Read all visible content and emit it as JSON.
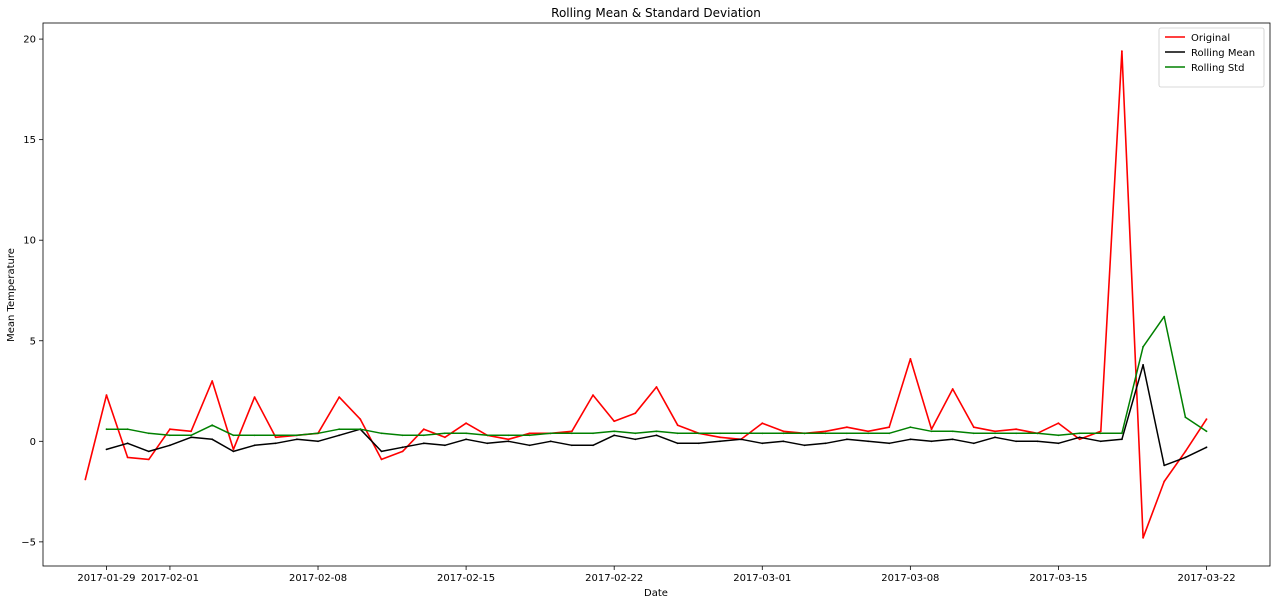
{
  "chart_data": {
    "type": "line",
    "title": "Rolling Mean & Standard Deviation",
    "xlabel": "Date",
    "ylabel": "Mean Temperature",
    "xlim": [
      "2017-01-26",
      "2017-03-25"
    ],
    "ylim": [
      -6.2,
      20.8
    ],
    "x_ticks": [
      "2017-01-29",
      "2017-02-01",
      "2017-02-08",
      "2017-02-15",
      "2017-02-22",
      "2017-03-01",
      "2017-03-08",
      "2017-03-15",
      "2017-03-22"
    ],
    "y_ticks": [
      -5,
      0,
      5,
      10,
      15,
      20
    ],
    "grid": false,
    "legend_position": "top-right",
    "series": [
      {
        "name": "Original",
        "color": "#ff0000",
        "x": [
          "2017-01-28",
          "2017-01-29",
          "2017-01-30",
          "2017-01-31",
          "2017-02-01",
          "2017-02-02",
          "2017-02-03",
          "2017-02-04",
          "2017-02-05",
          "2017-02-06",
          "2017-02-07",
          "2017-02-08",
          "2017-02-09",
          "2017-02-10",
          "2017-02-11",
          "2017-02-12",
          "2017-02-13",
          "2017-02-14",
          "2017-02-15",
          "2017-02-16",
          "2017-02-17",
          "2017-02-18",
          "2017-02-19",
          "2017-02-20",
          "2017-02-21",
          "2017-02-22",
          "2017-02-23",
          "2017-02-24",
          "2017-02-25",
          "2017-02-26",
          "2017-02-27",
          "2017-02-28",
          "2017-03-01",
          "2017-03-02",
          "2017-03-03",
          "2017-03-04",
          "2017-03-05",
          "2017-03-06",
          "2017-03-07",
          "2017-03-08",
          "2017-03-09",
          "2017-03-10",
          "2017-03-11",
          "2017-03-12",
          "2017-03-13",
          "2017-03-14",
          "2017-03-15",
          "2017-03-16",
          "2017-03-17",
          "2017-03-18",
          "2017-03-19",
          "2017-03-20",
          "2017-03-21",
          "2017-03-22"
        ],
        "y": [
          -1.9,
          2.3,
          -0.8,
          -0.9,
          0.6,
          0.5,
          3.0,
          -0.4,
          2.2,
          0.2,
          0.3,
          0.4,
          2.2,
          1.1,
          -0.9,
          -0.5,
          0.6,
          0.2,
          0.9,
          0.3,
          0.1,
          0.4,
          0.4,
          0.5,
          2.3,
          1.0,
          1.4,
          2.7,
          0.8,
          0.4,
          0.2,
          0.1,
          0.9,
          0.5,
          0.4,
          0.5,
          0.7,
          0.5,
          0.7,
          4.1,
          0.6,
          2.6,
          0.7,
          0.5,
          0.6,
          0.4,
          0.9,
          0.1,
          0.5,
          19.4,
          -4.8,
          -2.0,
          -0.5,
          1.1
        ]
      },
      {
        "name": "Rolling Mean",
        "color": "#000000",
        "x": [
          "2017-01-29",
          "2017-01-30",
          "2017-01-31",
          "2017-02-01",
          "2017-02-02",
          "2017-02-03",
          "2017-02-04",
          "2017-02-05",
          "2017-02-06",
          "2017-02-07",
          "2017-02-08",
          "2017-02-09",
          "2017-02-10",
          "2017-02-11",
          "2017-02-12",
          "2017-02-13",
          "2017-02-14",
          "2017-02-15",
          "2017-02-16",
          "2017-02-17",
          "2017-02-18",
          "2017-02-19",
          "2017-02-20",
          "2017-02-21",
          "2017-02-22",
          "2017-02-23",
          "2017-02-24",
          "2017-02-25",
          "2017-02-26",
          "2017-02-27",
          "2017-02-28",
          "2017-03-01",
          "2017-03-02",
          "2017-03-03",
          "2017-03-04",
          "2017-03-05",
          "2017-03-06",
          "2017-03-07",
          "2017-03-08",
          "2017-03-09",
          "2017-03-10",
          "2017-03-11",
          "2017-03-12",
          "2017-03-13",
          "2017-03-14",
          "2017-03-15",
          "2017-03-16",
          "2017-03-17",
          "2017-03-18",
          "2017-03-19",
          "2017-03-20",
          "2017-03-21",
          "2017-03-22"
        ],
        "y": [
          -0.4,
          -0.1,
          -0.5,
          -0.2,
          0.2,
          0.1,
          -0.5,
          -0.2,
          -0.1,
          0.1,
          0.0,
          0.3,
          0.6,
          -0.5,
          -0.3,
          -0.1,
          -0.2,
          0.1,
          -0.1,
          0.0,
          -0.2,
          0.0,
          -0.2,
          -0.2,
          0.3,
          0.1,
          0.3,
          -0.1,
          -0.1,
          0.0,
          0.1,
          -0.1,
          0.0,
          -0.2,
          -0.1,
          0.1,
          0.0,
          -0.1,
          0.1,
          0.0,
          0.1,
          -0.1,
          0.2,
          0.0,
          0.0,
          -0.1,
          0.2,
          0.0,
          0.1,
          3.8,
          -1.2,
          -0.8,
          -0.3
        ]
      },
      {
        "name": "Rolling Std",
        "color": "#008000",
        "x": [
          "2017-01-29",
          "2017-01-30",
          "2017-01-31",
          "2017-02-01",
          "2017-02-02",
          "2017-02-03",
          "2017-02-04",
          "2017-02-05",
          "2017-02-06",
          "2017-02-07",
          "2017-02-08",
          "2017-02-09",
          "2017-02-10",
          "2017-02-11",
          "2017-02-12",
          "2017-02-13",
          "2017-02-14",
          "2017-02-15",
          "2017-02-16",
          "2017-02-17",
          "2017-02-18",
          "2017-02-19",
          "2017-02-20",
          "2017-02-21",
          "2017-02-22",
          "2017-02-23",
          "2017-02-24",
          "2017-02-25",
          "2017-02-26",
          "2017-02-27",
          "2017-02-28",
          "2017-03-01",
          "2017-03-02",
          "2017-03-03",
          "2017-03-04",
          "2017-03-05",
          "2017-03-06",
          "2017-03-07",
          "2017-03-08",
          "2017-03-09",
          "2017-03-10",
          "2017-03-11",
          "2017-03-12",
          "2017-03-13",
          "2017-03-14",
          "2017-03-15",
          "2017-03-16",
          "2017-03-17",
          "2017-03-18",
          "2017-03-19",
          "2017-03-20",
          "2017-03-21",
          "2017-03-22"
        ],
        "y": [
          0.6,
          0.6,
          0.4,
          0.3,
          0.3,
          0.8,
          0.3,
          0.3,
          0.3,
          0.3,
          0.4,
          0.6,
          0.6,
          0.4,
          0.3,
          0.3,
          0.4,
          0.4,
          0.3,
          0.3,
          0.3,
          0.4,
          0.4,
          0.4,
          0.5,
          0.4,
          0.5,
          0.4,
          0.4,
          0.4,
          0.4,
          0.4,
          0.4,
          0.4,
          0.4,
          0.4,
          0.4,
          0.4,
          0.7,
          0.5,
          0.5,
          0.4,
          0.4,
          0.4,
          0.4,
          0.3,
          0.4,
          0.4,
          0.4,
          4.7,
          6.2,
          1.2,
          0.5
        ]
      }
    ]
  }
}
